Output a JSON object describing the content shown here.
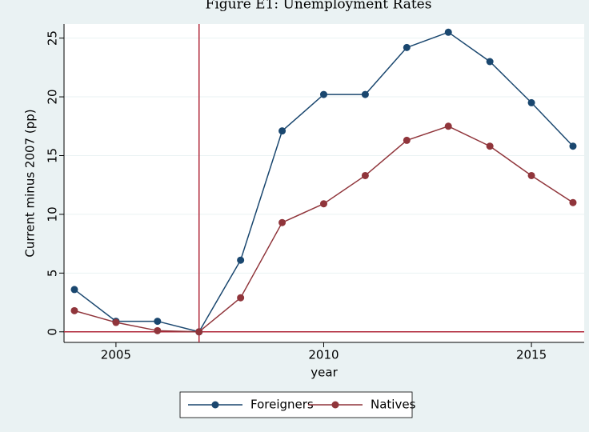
{
  "chart_data": {
    "type": "line",
    "title": "Figure E1: Unemployment Rates",
    "x_label": "year",
    "y_label": "Current minus 2007 (pp)",
    "x": [
      2004,
      2005,
      2006,
      2007,
      2008,
      2009,
      2010,
      2011,
      2012,
      2013,
      2014,
      2015,
      2016
    ],
    "series": [
      {
        "name": "Foreigners",
        "color": "#1a476f",
        "values": [
          3.6,
          0.9,
          0.9,
          0,
          6.1,
          17.1,
          20.2,
          20.2,
          24.2,
          25.5,
          23.0,
          19.5,
          15.8
        ]
      },
      {
        "name": "Natives",
        "color": "#90353b",
        "values": [
          1.8,
          0.8,
          0.1,
          0,
          2.9,
          9.3,
          10.9,
          13.3,
          16.3,
          17.5,
          15.8,
          13.3,
          11.0
        ]
      }
    ],
    "xlim": [
      2003.75,
      2016.27
    ],
    "xticks": [
      2005,
      2010,
      2015
    ],
    "ylim": [
      -0.9,
      26.2
    ],
    "yticks": [
      0,
      5,
      10,
      15,
      20,
      25
    ],
    "grid": true,
    "vline": 2007,
    "hline": 0,
    "reference_color": "#b0283a",
    "legend": "bottom"
  }
}
